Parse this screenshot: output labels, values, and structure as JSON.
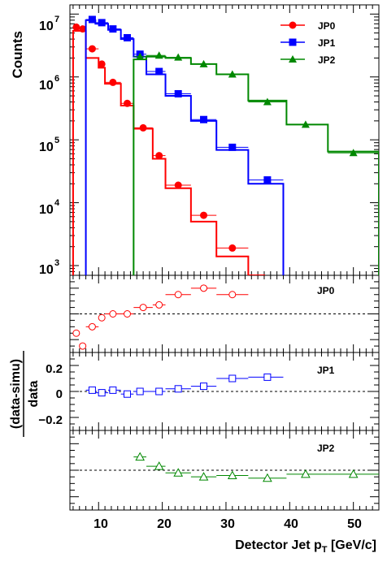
{
  "chart_data": {
    "type": "line",
    "xlabel_main": "Detector Jet p",
    "xlabel_sub": "T",
    "xlabel_units": " [GeV/c]",
    "ylabel_top": "Counts",
    "ylabel_ratio_num": "(data-simu)",
    "ylabel_ratio_den": "data",
    "x_ticks": [
      "10",
      "20",
      "30",
      "40",
      "50"
    ],
    "top_y_labels": [
      {
        "exp": "3",
        "value": 1000
      },
      {
        "exp": "4",
        "value": 10000
      },
      {
        "exp": "5",
        "value": 100000
      },
      {
        "exp": "6",
        "value": 1000000
      },
      {
        "exp": "7",
        "value": 10000000
      }
    ],
    "ratio_y_ticks": [
      "0.2",
      "0",
      "−0.2"
    ],
    "xlim": [
      5.5,
      54
    ],
    "ylim_top": [
      700,
      14000000
    ],
    "y_scale_top": "log",
    "ratio_ylim": [
      -0.3,
      0.3
    ],
    "colors": {
      "JP0": "#ff0000",
      "JP1": "#0000ff",
      "JP2": "#008800"
    },
    "series": [
      {
        "name": "JP0",
        "data_x": [
          6.5,
          7.5,
          9.0,
          10.5,
          12.25,
          14.5,
          17.0,
          19.5,
          22.5,
          26.5,
          31.0
        ],
        "data_y": [
          6200000,
          5800000,
          2800000,
          1600000,
          820000,
          380000,
          155000,
          56000,
          19000,
          6300,
          1900
        ],
        "simu_edges": [
          6.0,
          7.0,
          8.0,
          10.0,
          11.0,
          13.5,
          15.5,
          18.5,
          20.5,
          24.5,
          28.5,
          33.5,
          36.0
        ],
        "simu_y": [
          5400000,
          5400000,
          2000000,
          1400000,
          780000,
          350000,
          150000,
          50000,
          17000,
          5000,
          1400,
          700
        ],
        "ratio_x": [
          6.5,
          7.5,
          9.0,
          10.5,
          12.25,
          14.5,
          17.0,
          19.5,
          22.5,
          26.5,
          31.0
        ],
        "ratio_y": [
          -0.15,
          -0.25,
          -0.1,
          -0.03,
          0.0,
          0.0,
          0.05,
          0.07,
          0.15,
          0.2,
          0.15
        ]
      },
      {
        "name": "JP1",
        "data_x": [
          9.0,
          10.5,
          12.25,
          14.5,
          16.5,
          19.5,
          22.5,
          26.5,
          31.0,
          36.5
        ],
        "data_y": [
          8200000,
          7300000,
          5800000,
          4200000,
          2300000,
          1220000,
          540000,
          210000,
          76000,
          23000
        ],
        "simu_edges": [
          8.0,
          9.5,
          11.5,
          13.5,
          15.5,
          17.5,
          20.5,
          24.5,
          28.5,
          33.5,
          39.0
        ],
        "simu_y": [
          8000000,
          7000000,
          5600000,
          4000000,
          2100000,
          1100000,
          500000,
          200000,
          69000,
          20000
        ],
        "ratio_x": [
          9.0,
          10.5,
          12.25,
          14.5,
          16.5,
          19.5,
          22.5,
          26.5,
          31.0,
          36.5
        ],
        "ratio_y": [
          0.01,
          -0.01,
          0.01,
          -0.02,
          0.0,
          0.0,
          0.02,
          0.04,
          0.1,
          0.11
        ]
      },
      {
        "name": "JP2",
        "data_x": [
          16.5,
          19.5,
          22.5,
          26.5,
          31.0,
          36.5,
          42.5,
          50.0
        ],
        "data_y": [
          2100000,
          2200000,
          2050000,
          1600000,
          1100000,
          400000,
          175000,
          62000
        ],
        "simu_edges": [
          15.5,
          17.5,
          20.5,
          24.5,
          28.5,
          33.5,
          39.5,
          46.0,
          54.0
        ],
        "simu_y": [
          1900000,
          2100000,
          2000000,
          1600000,
          1100000,
          420000,
          175000,
          65000
        ],
        "ratio_x": [
          16.5,
          19.5,
          22.5,
          26.5,
          31.0,
          36.5,
          42.5,
          50.0
        ],
        "ratio_y": [
          0.1,
          0.03,
          -0.02,
          -0.05,
          -0.04,
          -0.06,
          -0.03,
          -0.03
        ]
      }
    ]
  }
}
